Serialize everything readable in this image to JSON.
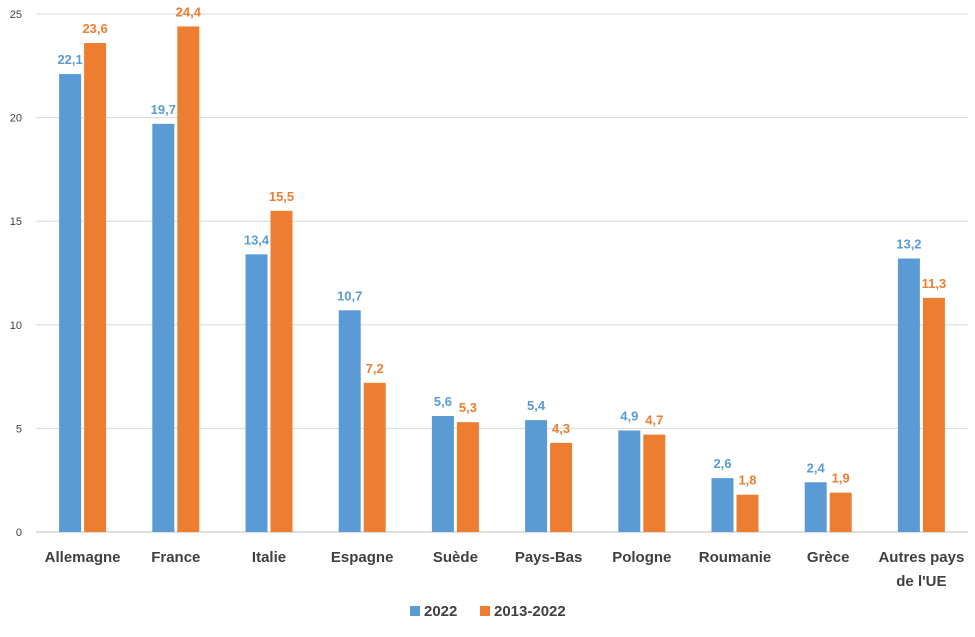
{
  "chart_data": {
    "type": "bar",
    "categories": [
      [
        "Allemagne"
      ],
      [
        "France"
      ],
      [
        "Italie"
      ],
      [
        "Espagne"
      ],
      [
        "Suède"
      ],
      [
        "Pays-Bas"
      ],
      [
        "Pologne"
      ],
      [
        "Roumanie"
      ],
      [
        "Grèce"
      ],
      [
        "Autres pays",
        "de l'UE"
      ]
    ],
    "series": [
      {
        "name": "2022",
        "color": "#5B9BD5",
        "values": [
          22.1,
          19.7,
          13.4,
          10.7,
          5.6,
          5.4,
          4.9,
          2.6,
          2.4,
          13.2
        ],
        "labels": [
          "22,1",
          "19,7",
          "13,4",
          "10,7",
          "5,6",
          "5,4",
          "4,9",
          "2,6",
          "2,4",
          "13,2"
        ]
      },
      {
        "name": "2013-2022",
        "color": "#ED7D31",
        "values": [
          23.6,
          24.4,
          15.5,
          7.2,
          5.3,
          4.3,
          4.7,
          1.8,
          1.9,
          11.3
        ],
        "labels": [
          "23,6",
          "24,4",
          "15,5",
          "7,2",
          "5,3",
          "4,3",
          "4,7",
          "1,8",
          "1,9",
          "11,3"
        ]
      }
    ],
    "ylim": [
      0,
      25
    ],
    "yticks": [
      "0",
      "5",
      "10",
      "15",
      "20",
      "25"
    ],
    "grid": true,
    "legend_position": "bottom",
    "title": "",
    "xlabel": "",
    "ylabel": ""
  }
}
